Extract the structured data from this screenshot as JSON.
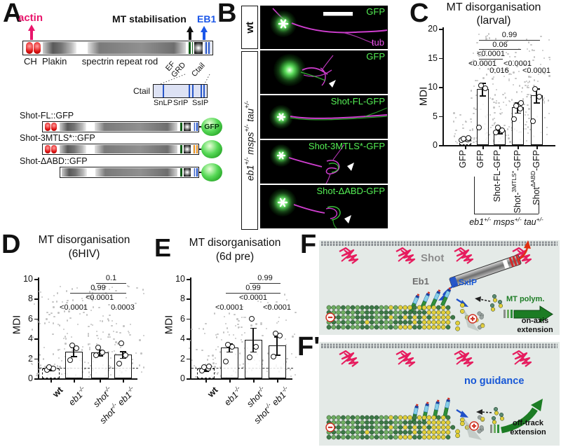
{
  "figure": {
    "A": {
      "letter": "A",
      "actin": "actin",
      "mt_stabilisation": "MT stabilisation",
      "eb1": "EB1",
      "ch": "CH",
      "plakin": "Plakin",
      "rod": "spectrin repeat rod",
      "ef": "EF",
      "grd": "GRD",
      "ctail_rot": "Ctail",
      "inset_label": "Ctail",
      "sites": [
        "SnLP",
        "SrIP",
        "SsIP"
      ],
      "constructs": [
        {
          "name": "Shot-FL::GFP",
          "tag": "GFP"
        },
        {
          "name": "Shot-3MTLS*::GFP",
          "tag": ""
        },
        {
          "name": "Shot-ΔABD::GFP",
          "tag": ""
        }
      ]
    },
    "B": {
      "letter": "B",
      "wt_label": "wt",
      "mutant_label": "eb1^{+/-} msps^{+/-} tau^{+/-}",
      "images": [
        {
          "label": "GFP",
          "sub_label": "tub"
        },
        {
          "label": "GFP"
        },
        {
          "label": "Shot-FL-GFP"
        },
        {
          "label": "Shot-3MTLS*-GFP"
        },
        {
          "label": "Shot-ΔABD-GFP"
        }
      ]
    },
    "F": {
      "letter": "F",
      "shot": "Shot",
      "sxip": "SxIP",
      "eb1": "Eb1",
      "mt_polym": "MT polym.",
      "on_axis": "on-axis\nextension"
    },
    "Fprime": {
      "letter": "F'",
      "no_guidance": "no guidance",
      "off_track": "off-track\nextension"
    }
  },
  "chart_data": [
    {
      "id": "C",
      "panel_letter": "C",
      "type": "bar",
      "title": "MT disorganisation",
      "subtitle": "(larval)",
      "xlabel": "",
      "ylabel": "MDI",
      "ylim": [
        0,
        20
      ],
      "yticks": [
        0,
        5,
        10,
        15,
        20
      ],
      "categories": [
        "GFP",
        "GFP",
        "Shot-FL-GFP",
        "Shot-^{3MTLS*}-GFP",
        "Shot^{ΔABD}-GFP"
      ],
      "values": [
        1.0,
        9.6,
        2.5,
        6.5,
        8.5
      ],
      "errors": [
        0.15,
        1.1,
        0.5,
        0.9,
        1.2
      ],
      "points": [
        [
          0.85,
          1.0,
          1.1,
          1.2
        ],
        [
          3.0,
          9.8,
          10.2
        ],
        [
          2.2,
          2.5,
          3.0
        ],
        [
          4.4,
          6.3,
          6.7,
          7.2
        ],
        [
          4.1,
          8.3,
          9.6
        ]
      ],
      "significance": [
        {
          "label": "0.99",
          "from": 1,
          "to": 4,
          "row": 0,
          "line": true
        },
        {
          "label": "0.06",
          "from": 1,
          "to": 3,
          "row": 1,
          "line": true
        },
        {
          "label": "<0.0001",
          "from": 1,
          "to": 2,
          "row": 2,
          "line": true
        },
        {
          "label": "<0.0001",
          "from": 1,
          "to": 1,
          "row": 3,
          "line": false
        },
        {
          "label": "0.016",
          "from": 2,
          "to": 2,
          "row": 3.8,
          "line": false
        },
        {
          "label": "<0.0001",
          "from": 3,
          "to": 3,
          "row": 3,
          "line": false
        },
        {
          "label": "<0.0001",
          "from": 4,
          "to": 4,
          "row": 3.8,
          "line": false
        }
      ],
      "group_bracket": {
        "label": "eb1^{+/-} msps^{+/-} tau^{+/-}",
        "from": 1,
        "to": 4
      },
      "dashed_bar": 0,
      "legend": "none",
      "grid": false
    },
    {
      "id": "D",
      "panel_letter": "D",
      "type": "bar",
      "title": "MT disorganisation",
      "subtitle": "(6HIV)",
      "xlabel": "",
      "ylabel": "MDI",
      "ylim": [
        0,
        10
      ],
      "yticks": [
        0,
        2,
        4,
        6,
        8,
        10
      ],
      "categories": [
        "wt",
        "eb1^{-/-}",
        "shot^{-/-}",
        "shot^{-/-} eb1^{-/-}"
      ],
      "bold_category": 0,
      "values": [
        1.0,
        2.7,
        2.6,
        2.4
      ],
      "errors": [
        0.2,
        0.45,
        0.3,
        0.35
      ],
      "points": [
        [
          0.85,
          1.0,
          1.1
        ],
        [
          1.8,
          3.0,
          3.3
        ],
        [
          2.3,
          2.6,
          3.1
        ],
        [
          1.5,
          2.3,
          3.5
        ]
      ],
      "significance": [
        {
          "label": "0.1",
          "from": 2,
          "to": 3,
          "row": 0,
          "line": true
        },
        {
          "label": "0.99",
          "from": 1,
          "to": 3,
          "row": 1,
          "line": true
        },
        {
          "label": "<0.0001",
          "from": 2,
          "to": 2,
          "row": 2,
          "line": false
        },
        {
          "label": "<0.0001",
          "from": 1,
          "to": 1,
          "row": 3,
          "line": false
        },
        {
          "label": "0.0003",
          "from": 3,
          "to": 3,
          "row": 3,
          "line": false
        }
      ],
      "dashed_line_y": 1,
      "dashed_bar": 0,
      "legend": "none",
      "grid": false
    },
    {
      "id": "E",
      "panel_letter": "E",
      "type": "bar",
      "title": "MT disorganisation",
      "subtitle": "(6d pre)",
      "xlabel": "",
      "ylabel": "MDI",
      "ylim": [
        0,
        10
      ],
      "yticks": [
        0,
        2,
        4,
        6,
        8,
        10
      ],
      "categories": [
        "wt",
        "eb1^{-/-}",
        "shot^{-/-}",
        "shot^{-/-} eb1^{-/-}"
      ],
      "bold_category": 0,
      "values": [
        1.0,
        3.1,
        3.9,
        3.3
      ],
      "errors": [
        0.25,
        0.4,
        1.2,
        0.9
      ],
      "points": [
        [
          0.8,
          1.0,
          1.1,
          1.2
        ],
        [
          1.7,
          3.2,
          3.4
        ],
        [
          2.1,
          3.2,
          6.0
        ],
        [
          2.2,
          4.3,
          4.5
        ]
      ],
      "significance": [
        {
          "label": "0.99",
          "from": 2,
          "to": 3,
          "row": 0,
          "line": true
        },
        {
          "label": "0.99",
          "from": 1,
          "to": 3,
          "row": 1,
          "line": true
        },
        {
          "label": "<0.0001",
          "from": 2,
          "to": 2,
          "row": 2,
          "line": false
        },
        {
          "label": "<0.0001",
          "from": 1,
          "to": 1,
          "row": 3,
          "line": false
        },
        {
          "label": "<0.0001",
          "from": 3,
          "to": 3,
          "row": 3,
          "line": false
        }
      ],
      "dashed_line_y": 1,
      "dashed_bar": 0,
      "legend": "none",
      "grid": false
    }
  ],
  "colors": {
    "actin_pink": "#e8156b",
    "eb1_blue": "#1a56e8",
    "gfp_label_green": "#55f055",
    "tub_magenta": "#ee55ee",
    "sxip_blue": "#1757d6",
    "mt_polym_green": "#1c7c24",
    "no_guidance_blue": "#1757d6",
    "schematic_bg": "#e4eae7",
    "orange_mutation": "#f59a1e"
  }
}
